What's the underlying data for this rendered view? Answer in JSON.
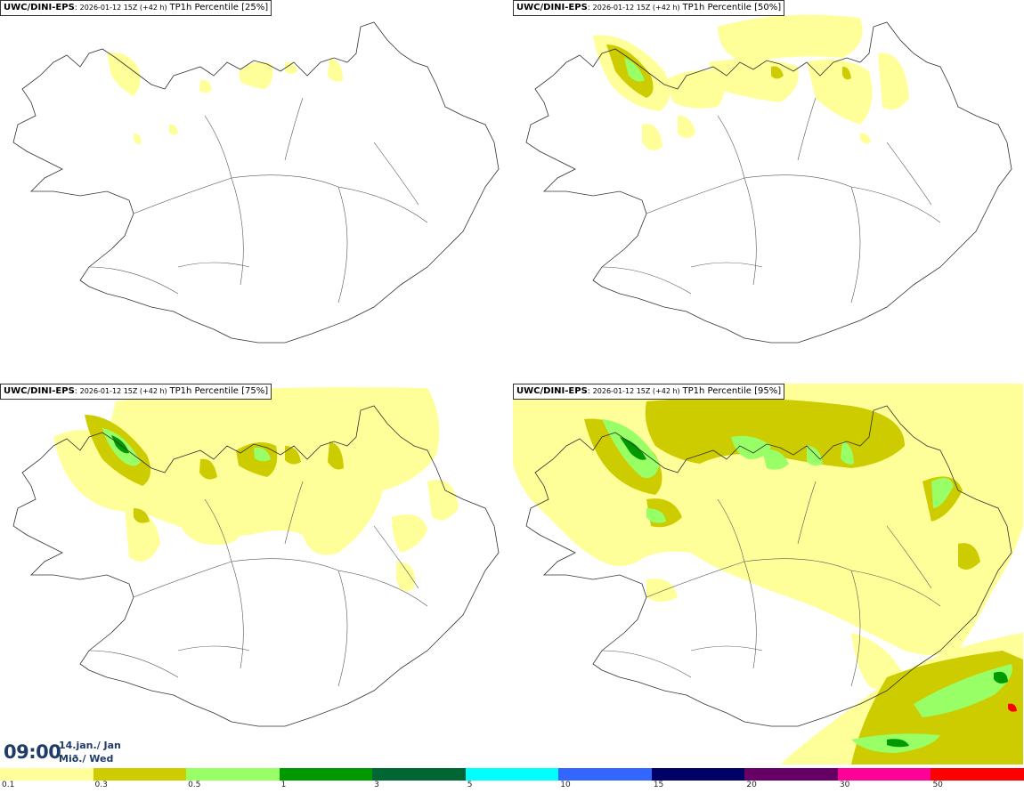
{
  "panels": [
    {
      "model": "UWC/DINI-EPS",
      "meta": "2026-01-12 15Z (+42 h)",
      "field": "TP1h Percentile [25%]"
    },
    {
      "model": "UWC/DINI-EPS",
      "meta": "2026-01-12 15Z (+42 h)",
      "field": "TP1h Percentile [50%]"
    },
    {
      "model": "UWC/DINI-EPS",
      "meta": "2026-01-12 15Z (+42 h)",
      "field": "TP1h Percentile [75%]"
    },
    {
      "model": "UWC/DINI-EPS",
      "meta": "2026-01-12 15Z (+42 h)",
      "field": "TP1h Percentile [95%]"
    }
  ],
  "time": {
    "clock": "09:00",
    "date_line1": "14.jan./ Jan",
    "date_line2": "Mið./ Wed"
  },
  "legend": {
    "colors": [
      "#ffff99",
      "#cccc00",
      "#99ff66",
      "#009900",
      "#006633",
      "#00ffff",
      "#3366ff",
      "#000066",
      "#660066",
      "#ff0099",
      "#ff0000"
    ],
    "ticks": [
      "0.1",
      "0.3",
      "0.5",
      "1",
      "3",
      "5",
      "10",
      "15",
      "20",
      "30",
      "50"
    ]
  }
}
